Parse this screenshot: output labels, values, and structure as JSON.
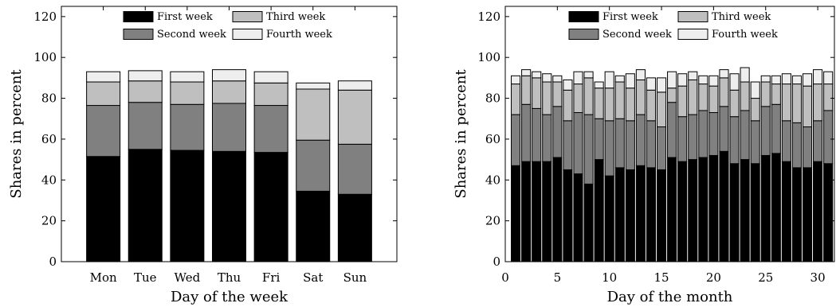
{
  "chart_data": [
    {
      "type": "bar",
      "stacked": true,
      "xlabel": "Day of the week",
      "ylabel": "Shares in percent",
      "ylim": [
        0,
        125
      ],
      "yticks": [
        0,
        20,
        40,
        60,
        80,
        100,
        120
      ],
      "legend_position": "top-center",
      "categories": [
        "Mon",
        "Tue",
        "Wed",
        "Thu",
        "Fri",
        "Sat",
        "Sun"
      ],
      "series": [
        {
          "name": "First week",
          "color": "#000000",
          "values": [
            51.5,
            55,
            54.5,
            54,
            53.5,
            34.5,
            33
          ]
        },
        {
          "name": "Second week",
          "color": "#808080",
          "values": [
            25,
            23,
            22.5,
            23.5,
            23,
            25,
            24.5
          ]
        },
        {
          "name": "Third week",
          "color": "#bfbfbf",
          "values": [
            11.5,
            10.5,
            11,
            11,
            11,
            25,
            26.5
          ]
        },
        {
          "name": "Fourth week",
          "color": "#eeeeee",
          "values": [
            5,
            5,
            5,
            5.5,
            5.5,
            3,
            4.5
          ]
        }
      ]
    },
    {
      "type": "bar",
      "stacked": true,
      "xlabel": "Day of the month",
      "ylabel": "Shares in percent",
      "ylim": [
        0,
        125
      ],
      "xlim": [
        0,
        31.6
      ],
      "yticks": [
        0,
        20,
        40,
        60,
        80,
        100,
        120
      ],
      "xticks": [
        0,
        5,
        10,
        15,
        20,
        25,
        30
      ],
      "legend_position": "top-center",
      "x": [
        1,
        2,
        3,
        4,
        5,
        6,
        7,
        8,
        9,
        10,
        11,
        12,
        13,
        14,
        15,
        16,
        17,
        18,
        19,
        20,
        21,
        22,
        23,
        24,
        25,
        26,
        27,
        28,
        29,
        30,
        31
      ],
      "series": [
        {
          "name": "First week",
          "color": "#000000",
          "values": [
            47,
            49,
            49,
            49,
            51,
            45,
            43,
            38,
            50,
            42,
            46,
            45,
            47,
            46,
            45,
            51,
            49,
            50,
            51,
            52,
            54,
            48,
            50,
            48,
            52,
            53,
            49,
            46,
            46,
            49,
            48
          ]
        },
        {
          "name": "Second week",
          "color": "#808080",
          "values": [
            25,
            28,
            26,
            23,
            25,
            24,
            30,
            34,
            20,
            27,
            24,
            24,
            25,
            23,
            21,
            27,
            22,
            22,
            23,
            21,
            22,
            23,
            24,
            21,
            24,
            24,
            20,
            22,
            20,
            20,
            26
          ]
        },
        {
          "name": "Third week",
          "color": "#bfbfbf",
          "values": [
            15,
            14,
            15,
            16,
            12,
            15,
            14,
            18,
            15,
            16,
            18,
            16,
            17,
            15,
            17,
            7,
            15,
            17,
            13,
            13,
            14,
            13,
            14,
            11,
            12,
            10,
            18,
            19,
            20,
            18,
            13
          ]
        },
        {
          "name": "Fourth week",
          "color": "#eeeeee",
          "values": [
            4,
            3,
            3,
            4,
            3,
            5,
            6,
            3,
            3,
            8,
            3,
            7,
            5,
            6,
            7,
            8,
            6,
            4,
            4,
            5,
            4,
            8,
            7,
            8,
            3,
            4,
            5,
            4,
            6,
            7,
            6
          ]
        }
      ]
    }
  ]
}
